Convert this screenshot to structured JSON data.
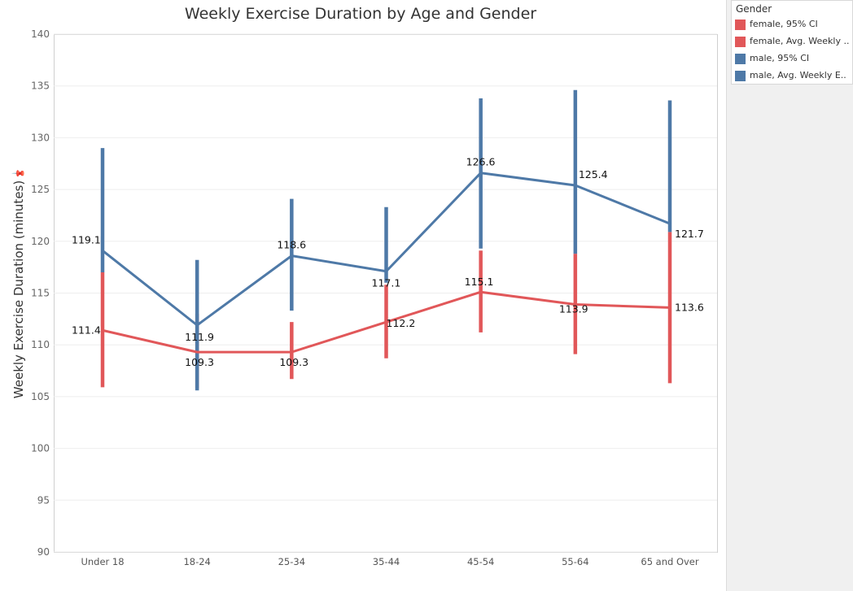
{
  "chart_data": {
    "type": "line",
    "title": "Weekly Exercise Duration by Age and Gender",
    "xlabel": "",
    "ylabel": "Weekly Exercise Duration (minutes)",
    "ylim": [
      90,
      140
    ],
    "yticks": [
      90,
      95,
      100,
      105,
      110,
      115,
      120,
      125,
      130,
      135,
      140
    ],
    "categories": [
      "Under 18",
      "18-24",
      "25-34",
      "35-44",
      "45-54",
      "55-64",
      "65 and Over"
    ],
    "grid": true,
    "legend_position": "top-right",
    "series": [
      {
        "name": "female",
        "color": "#e15759",
        "values": [
          111.4,
          109.3,
          109.3,
          112.2,
          115.1,
          113.9,
          113.6
        ],
        "labels": [
          "111.4",
          "109.3",
          "109.3",
          "112.2",
          "115.1",
          "113.9",
          "113.6"
        ],
        "ci_low": [
          105.9,
          105.8,
          106.7,
          108.7,
          111.2,
          109.1,
          106.3
        ],
        "ci_high": [
          117.0,
          113.0,
          112.2,
          115.8,
          119.1,
          118.8,
          120.9
        ]
      },
      {
        "name": "male",
        "color": "#4e79a7",
        "values": [
          119.1,
          111.9,
          118.6,
          117.1,
          126.6,
          125.4,
          121.7
        ],
        "labels": [
          "119.1",
          "111.9",
          "118.6",
          "117.1",
          "126.6",
          "125.4",
          "121.7"
        ],
        "ci_low": [
          117.0,
          105.6,
          113.3,
          116.0,
          119.3,
          118.8,
          120.9
        ],
        "ci_high": [
          129.0,
          118.2,
          124.1,
          123.3,
          133.8,
          134.6,
          133.6
        ]
      }
    ]
  },
  "legend": {
    "title": "Gender",
    "items": [
      {
        "label": "female, 95% CI",
        "color": "#e15759"
      },
      {
        "label": "female, Avg. Weekly ..",
        "color": "#e15759"
      },
      {
        "label": "male, 95% CI",
        "color": "#4e79a7"
      },
      {
        "label": "male, Avg. Weekly E..",
        "color": "#4e79a7"
      }
    ]
  },
  "icons": {
    "axis_pin": "pin-icon"
  }
}
